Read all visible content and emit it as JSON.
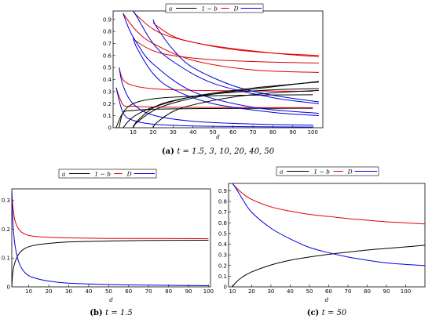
{
  "colors": {
    "a": "#000000",
    "one_minus_b": "#e00000",
    "D": "#0000e0"
  },
  "chart_data": [
    {
      "type": "line",
      "panel": "(a)",
      "caption_label": "(a)",
      "caption_text": "t = 1.5, 3, 10, 20, 40, 50",
      "xlabel": "d",
      "ylabel": "",
      "xlim": [
        0,
        105
      ],
      "ylim": [
        0,
        0.97
      ],
      "x_ticks": [
        10,
        20,
        30,
        40,
        50,
        60,
        70,
        80,
        90,
        100
      ],
      "y_ticks": [
        0.1,
        0.2,
        0.3,
        0.4,
        0.5,
        0.6,
        0.7,
        0.8,
        0.9
      ],
      "grid": false,
      "legend": [
        "a",
        "1 − b",
        "D"
      ],
      "legend_position": "top",
      "t_values": [
        1.5,
        3,
        10,
        20,
        40,
        50
      ],
      "x_end": 103,
      "series": [
        {
          "t": 1.5,
          "x": [
            1.5,
            5,
            10,
            20,
            40,
            70,
            100
          ],
          "a": [
            0,
            0.124,
            0.143,
            0.154,
            0.159,
            0.161,
            0.162
          ],
          "one_minus_b": [
            0.333,
            0.191,
            0.179,
            0.172,
            0.169,
            0.168,
            0.167
          ],
          "D": [
            0.333,
            0.124,
            0.062,
            0.03,
            0.015,
            0.009,
            0.006
          ]
        },
        {
          "t": 3,
          "x": [
            3,
            5,
            10,
            20,
            40,
            70,
            100
          ],
          "a": [
            0,
            0.126,
            0.2,
            0.24,
            0.262,
            0.271,
            0.274
          ],
          "one_minus_b": [
            0.5,
            0.399,
            0.351,
            0.324,
            0.311,
            0.306,
            0.303
          ],
          "D": [
            0.5,
            0.349,
            0.2,
            0.105,
            0.054,
            0.031,
            0.022
          ]
        },
        {
          "t": 10,
          "x": [
            10,
            12,
            20,
            30,
            50,
            80,
            103
          ],
          "a": [
            0,
            0.055,
            0.165,
            0.225,
            0.28,
            0.315,
            0.325
          ],
          "one_minus_b": [
            0.75,
            0.713,
            0.64,
            0.6,
            0.565,
            0.545,
            0.538
          ],
          "D": [
            0.75,
            0.66,
            0.45,
            0.32,
            0.2,
            0.128,
            0.101
          ]
        },
        {
          "t": 20,
          "x": [
            20,
            22,
            30,
            40,
            60,
            80,
            103
          ],
          "a": [
            0,
            0.045,
            0.135,
            0.19,
            0.255,
            0.29,
            0.31
          ],
          "one_minus_b": [
            0.875,
            0.845,
            0.76,
            0.71,
            0.65,
            0.62,
            0.6
          ],
          "D": [
            0.9,
            0.83,
            0.65,
            0.5,
            0.35,
            0.27,
            0.215
          ]
        },
        {
          "t": 40,
          "x": [
            5,
            8,
            12,
            20,
            40,
            70,
            103
          ],
          "a": [
            0,
            0.06,
            0.11,
            0.17,
            0.26,
            0.33,
            0.38
          ],
          "one_minus_b": [
            0.95,
            0.88,
            0.8,
            0.7,
            0.56,
            0.48,
            0.46
          ],
          "D": [
            0.95,
            0.82,
            0.7,
            0.53,
            0.3,
            0.17,
            0.12
          ]
        },
        {
          "t": 50,
          "x": [
            10,
            12,
            20,
            30,
            50,
            80,
            103
          ],
          "a": [
            0,
            0.045,
            0.14,
            0.205,
            0.28,
            0.34,
            0.385
          ],
          "one_minus_b": [
            0.97,
            0.93,
            0.82,
            0.75,
            0.68,
            0.62,
            0.59
          ],
          "D": [
            0.97,
            0.92,
            0.7,
            0.55,
            0.37,
            0.25,
            0.2
          ]
        }
      ]
    },
    {
      "type": "line",
      "panel": "(b)",
      "caption_label": "(b)",
      "caption_text": "t = 1.5",
      "xlabel": "d",
      "ylabel": "",
      "xlim": [
        1.5,
        101
      ],
      "ylim": [
        0,
        0.34
      ],
      "x_ticks": [
        10,
        20,
        30,
        40,
        50,
        60,
        70,
        80,
        90,
        100
      ],
      "y_ticks": [
        0.1,
        0.2,
        0.3
      ],
      "grid": false,
      "legend": [
        "a",
        "1 − b",
        "D"
      ],
      "legend_position": "top-right",
      "series": [
        {
          "name": "a",
          "x": [
            1.5,
            2,
            3,
            5,
            8,
            12,
            20,
            30,
            50,
            70,
            100
          ],
          "y": [
            0,
            0.05,
            0.083,
            0.114,
            0.133,
            0.143,
            0.151,
            0.156,
            0.159,
            0.161,
            0.162
          ]
        },
        {
          "name": "1 − b",
          "x": [
            1.5,
            2,
            3,
            5,
            8,
            12,
            20,
            30,
            50,
            70,
            100
          ],
          "y": [
            0.333,
            0.283,
            0.233,
            0.2,
            0.183,
            0.176,
            0.172,
            0.17,
            0.168,
            0.168,
            0.167
          ]
        },
        {
          "name": "D",
          "x": [
            1.5,
            2,
            3,
            5,
            8,
            12,
            20,
            30,
            50,
            70,
            100
          ],
          "y": [
            0.333,
            0.233,
            0.15,
            0.086,
            0.05,
            0.033,
            0.02,
            0.013,
            0.008,
            0.006,
            0.004
          ]
        }
      ]
    },
    {
      "type": "line",
      "panel": "(c)",
      "caption_label": "(c)",
      "caption_text": "t = 50",
      "xlabel": "d",
      "ylabel": "",
      "xlim": [
        8,
        110
      ],
      "ylim": [
        0,
        0.97
      ],
      "x_ticks": [
        10,
        20,
        30,
        40,
        50,
        60,
        70,
        80,
        90,
        100
      ],
      "y_ticks": [
        0.1,
        0.2,
        0.3,
        0.4,
        0.5,
        0.6,
        0.7,
        0.8,
        0.9
      ],
      "grid": false,
      "legend": [
        "a",
        "1 − b",
        "D"
      ],
      "legend_position": "top-right",
      "series": [
        {
          "name": "a",
          "x": [
            10,
            12,
            15,
            20,
            30,
            40,
            50,
            60,
            70,
            80,
            90,
            100,
            110
          ],
          "y": [
            0,
            0.045,
            0.09,
            0.14,
            0.205,
            0.25,
            0.28,
            0.305,
            0.325,
            0.345,
            0.36,
            0.375,
            0.39
          ]
        },
        {
          "name": "1 − b",
          "x": [
            10,
            12,
            15,
            20,
            30,
            40,
            50,
            60,
            70,
            80,
            90,
            100,
            110
          ],
          "y": [
            0.97,
            0.93,
            0.88,
            0.82,
            0.75,
            0.71,
            0.68,
            0.66,
            0.64,
            0.625,
            0.61,
            0.6,
            0.59
          ]
        },
        {
          "name": "D",
          "x": [
            10,
            12,
            15,
            20,
            30,
            40,
            50,
            60,
            70,
            80,
            90,
            100,
            110
          ],
          "y": [
            0.97,
            0.92,
            0.83,
            0.7,
            0.55,
            0.45,
            0.37,
            0.32,
            0.28,
            0.25,
            0.225,
            0.21,
            0.2
          ]
        }
      ]
    }
  ]
}
